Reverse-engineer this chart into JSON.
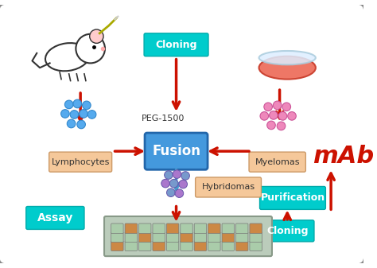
{
  "bg_color": "#f0f0f0",
  "colors": {
    "border_color": "#888888",
    "cyan_box": "#00CCCC",
    "peach_box": "#F5C89A",
    "fusion_box": "#4499DD",
    "red_arrow": "#CC1100",
    "blue_arrow": "#3399CC",
    "lymph_dots": "#4488CC",
    "myeloma_dots": "#DD66AA",
    "hybridoma_dots_blue": "#6688CC",
    "hybridoma_dots_purple": "#9966BB",
    "mab_text": "#CC1100",
    "white": "#FFFFFF",
    "light_gray": "#DDDDDD",
    "outer_bg": "#FFFFFF"
  },
  "labels": {
    "cloning_top": "Cloning",
    "peg": "PEG-1500",
    "fusion": "Fusion",
    "lymphocytes": "Lymphocytes",
    "myelomas": "Myelomas",
    "hybridomas": "Hybridomas",
    "assay": "Assay",
    "purification": "Purification",
    "cloning_bottom": "Cloning",
    "mab": "mAb"
  },
  "figsize": [
    4.74,
    3.37
  ],
  "dpi": 100
}
